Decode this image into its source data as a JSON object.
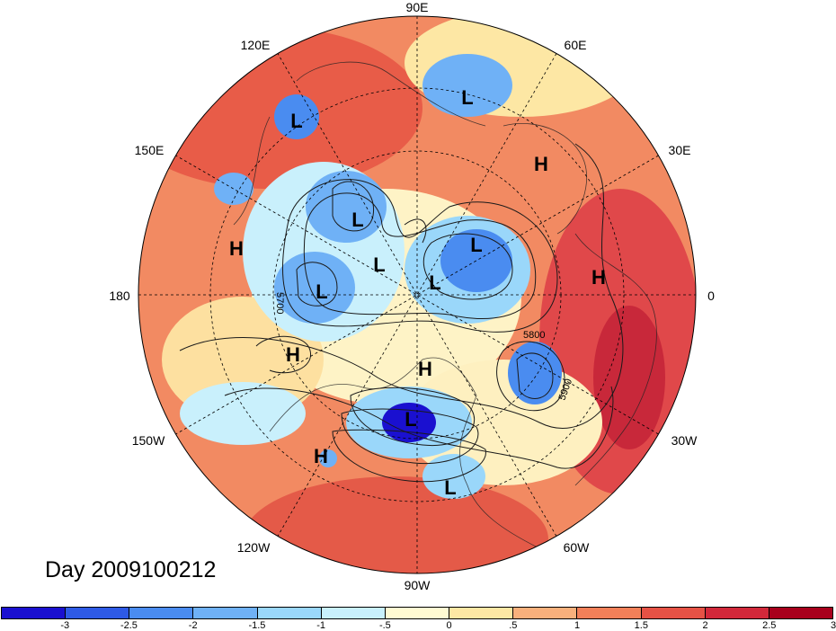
{
  "title": "Day 2009100212",
  "longitude_labels": {
    "lon_90E": "90E",
    "lon_60E": "60E",
    "lon_30E": "30E",
    "lon_0": "0",
    "lon_30W": "30W",
    "lon_60W": "60W",
    "lon_90W": "90W",
    "lon_120W": "120W",
    "lon_150W": "150W",
    "lon_180": "180",
    "lon_150E": "150E",
    "lon_120E": "120E"
  },
  "pressure_centers": [
    {
      "type": "L"
    },
    {
      "type": "L"
    },
    {
      "type": "H"
    },
    {
      "type": "L"
    },
    {
      "type": "L"
    },
    {
      "type": "L"
    },
    {
      "type": "H"
    },
    {
      "type": "H"
    },
    {
      "type": "L"
    },
    {
      "type": "L"
    },
    {
      "type": "H"
    },
    {
      "type": "H"
    },
    {
      "type": "L"
    },
    {
      "type": "H"
    },
    {
      "type": "L"
    }
  ],
  "contour_labels": [
    "5700",
    "5800",
    "5900"
  ],
  "colorbar": {
    "colors": [
      "#1a10d0",
      "#2e5ae6",
      "#4a8cf0",
      "#6fb1f6",
      "#9ad7fa",
      "#c9f0fc",
      "#fffad2",
      "#fde7a4",
      "#f8b07c",
      "#f28059",
      "#e65245",
      "#d2283a",
      "#a8001c"
    ],
    "tick_labels": [
      "-3",
      "-2.5",
      "-2",
      "-1.5",
      "-1",
      "-.5",
      "0",
      ".5",
      "1",
      "1.5",
      "2",
      "2.5",
      "3"
    ]
  }
}
